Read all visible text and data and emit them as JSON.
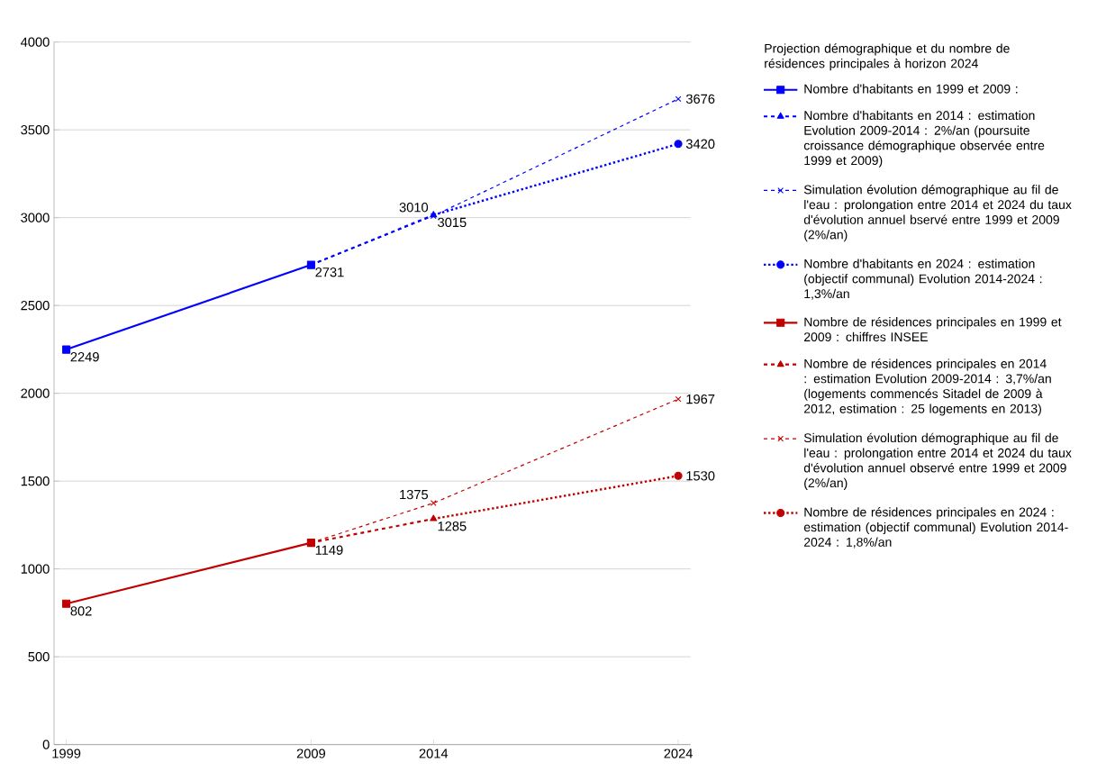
{
  "chart_data": {
    "type": "line",
    "legend_title": "Projection démographique et du nombre de résidences principales à horizon 2024",
    "xlim": [
      1998.5,
      2024.5
    ],
    "xticks": [
      1999,
      2009,
      2014,
      2024
    ],
    "ylim": [
      0,
      4000
    ],
    "yticks": [
      0,
      500,
      1000,
      1500,
      2000,
      2500,
      3000,
      3500,
      4000
    ],
    "grid": "y",
    "legend": "right",
    "series": [
      {
        "name": "Nombre d'habitants en 1999 et 2009 :",
        "color": "#0000ff",
        "marker": "square",
        "line_style": "solid",
        "x": [
          1999,
          2009
        ],
        "values": [
          2249,
          2731
        ],
        "value_labels": [
          "2249",
          "2731"
        ]
      },
      {
        "name": "Nombre d'habitants en 2014 : estimation Evolution 2009-2014 : 2%/an (poursuite croissance démographique observée entre 1999 et 2009)",
        "color": "#0000ff",
        "marker": "triangle",
        "line_style": "dashed",
        "x": [
          2009,
          2014
        ],
        "values": [
          2731,
          3015
        ],
        "value_labels": [
          null,
          "3015"
        ]
      },
      {
        "name": "Simulation évolution démographique au fil de l'eau : prolongation entre 2014 et 2024 du taux d'évolution annuel bservé entre 1999 et 2009 (2%/an)",
        "color": "#0000ff",
        "marker": "cross",
        "line_style": "dashed",
        "x": [
          2009,
          2014,
          2024
        ],
        "values": [
          2731,
          3010,
          3676
        ],
        "value_labels": [
          null,
          "3010",
          "3676"
        ]
      },
      {
        "name": "Nombre d'habitants en 2024 : estimation (objectif communal) Evolution 2014-2024 : 1,3%/an",
        "color": "#0000ff",
        "marker": "circle",
        "line_style": "dotted",
        "x": [
          2014,
          2024
        ],
        "values": [
          3015,
          3420
        ],
        "value_labels": [
          null,
          "3420"
        ]
      },
      {
        "name": "Nombre de résidences principales en 1999 et 2009 : chiffres INSEE",
        "color": "#c00000",
        "marker": "square",
        "line_style": "solid",
        "x": [
          1999,
          2009
        ],
        "values": [
          802,
          1149
        ],
        "value_labels": [
          "802",
          "1149"
        ]
      },
      {
        "name": "Nombre de résidences principales en 2014 : estimation Evolution 2009-2014 : 3,7%/an (logements commencés Sitadel de 2009 à 2012, estimation : 25 logements en 2013)",
        "color": "#c00000",
        "marker": "triangle",
        "line_style": "dashed",
        "x": [
          2009,
          2014
        ],
        "values": [
          1149,
          1285
        ],
        "value_labels": [
          null,
          "1285"
        ]
      },
      {
        "name": "Simulation évolution démographique au fil de l'eau : prolongation entre 2014 et 2024 du taux d'évolution annuel observé entre 1999 et 2009 (2%/an)",
        "color": "#c00000",
        "marker": "cross",
        "line_style": "dashed",
        "x": [
          2009,
          2014,
          2024
        ],
        "values": [
          1149,
          1375,
          1967
        ],
        "value_labels": [
          null,
          "1375",
          "1967"
        ]
      },
      {
        "name": "Nombre de résidences principales en 2024 : estimation (objectif communal) Evolution 2014-2024 : 1,8%/an",
        "color": "#c00000",
        "marker": "circle",
        "line_style": "dotted",
        "x": [
          2014,
          2024
        ],
        "values": [
          1285,
          1530
        ],
        "value_labels": [
          null,
          "1530"
        ]
      }
    ]
  }
}
